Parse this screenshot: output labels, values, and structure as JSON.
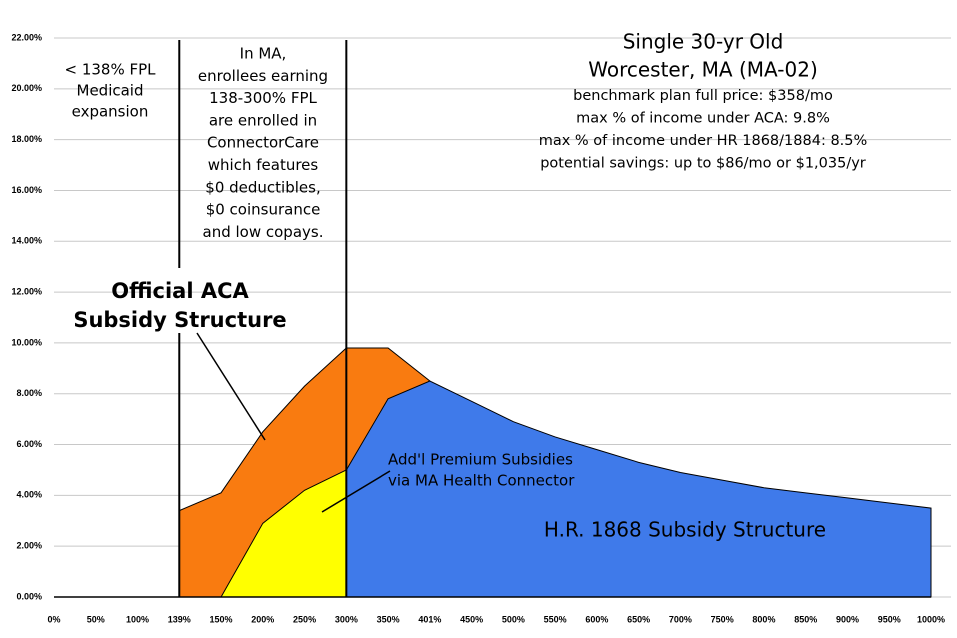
{
  "chart_data": {
    "type": "area",
    "title": "Single 30-yr Old",
    "subtitle": "Worcester, MA (MA-02)",
    "notes": [
      "benchmark plan full price: $358/mo",
      "max % of income under ACA: 9.8%",
      "max % of income under HR 1868/1884: 8.5%",
      "potential savings: up to $86/mo or $1,035/yr"
    ],
    "annotations": [
      [
        "< 138% FPL",
        "Medicaid",
        "expansion"
      ],
      [
        "In MA,",
        "enrollees earning",
        "138-300% FPL",
        "are enrolled in",
        "ConnectorCare",
        "which features",
        "$0 deductibles,",
        "$0 coinsurance",
        "and low copays."
      ],
      [
        "Official ACA",
        "Subsidy Structure"
      ],
      [
        "Add'l Premium Subsidies",
        "via MA Health Connector"
      ],
      [
        "H.R. 1868 Subsidy Structure"
      ]
    ],
    "categories": [
      "0%",
      "50%",
      "100%",
      "139%",
      "150%",
      "200%",
      "250%",
      "300%",
      "350%",
      "401%",
      "450%",
      "500%",
      "550%",
      "600%",
      "650%",
      "700%",
      "750%",
      "800%",
      "850%",
      "900%",
      "950%",
      "1000%"
    ],
    "series": [
      {
        "color": "#f97b10",
        "values": [
          null,
          null,
          null,
          3.4,
          4.1,
          6.5,
          8.3,
          9.8,
          9.8,
          8.5,
          null,
          null,
          null,
          null,
          null,
          null,
          null,
          null,
          null,
          null,
          null,
          null
        ]
      },
      {
        "color": "#ffff00",
        "values": [
          null,
          null,
          null,
          null,
          0,
          2.9,
          4.2,
          5.0,
          null,
          null,
          null,
          null,
          null,
          null,
          null,
          null,
          null,
          null,
          null,
          null,
          null,
          null
        ]
      },
      {
        "color": "#3f7aea",
        "values": [
          null,
          null,
          null,
          null,
          null,
          null,
          null,
          5.0,
          7.8,
          8.5,
          7.7,
          6.9,
          6.3,
          5.8,
          5.3,
          4.9,
          4.6,
          4.3,
          4.1,
          3.9,
          3.7,
          3.5
        ]
      }
    ],
    "ylim": [
      0,
      22
    ],
    "yticks": [
      {
        "value": 0,
        "label": "0.00%"
      },
      {
        "value": 2,
        "label": "2.00%"
      },
      {
        "value": 4,
        "label": "4.00%"
      },
      {
        "value": 6,
        "label": "6.00%"
      },
      {
        "value": 8,
        "label": "8.00%"
      },
      {
        "value": 10,
        "label": "10.00%"
      },
      {
        "value": 12,
        "label": "12.00%"
      },
      {
        "value": 14,
        "label": "14.00%"
      },
      {
        "value": 16,
        "label": "16.00%"
      },
      {
        "value": 18,
        "label": "18.00%"
      },
      {
        "value": 20,
        "label": "20.00%"
      },
      {
        "value": 22,
        "label": "22.00%"
      }
    ],
    "grid": true
  }
}
